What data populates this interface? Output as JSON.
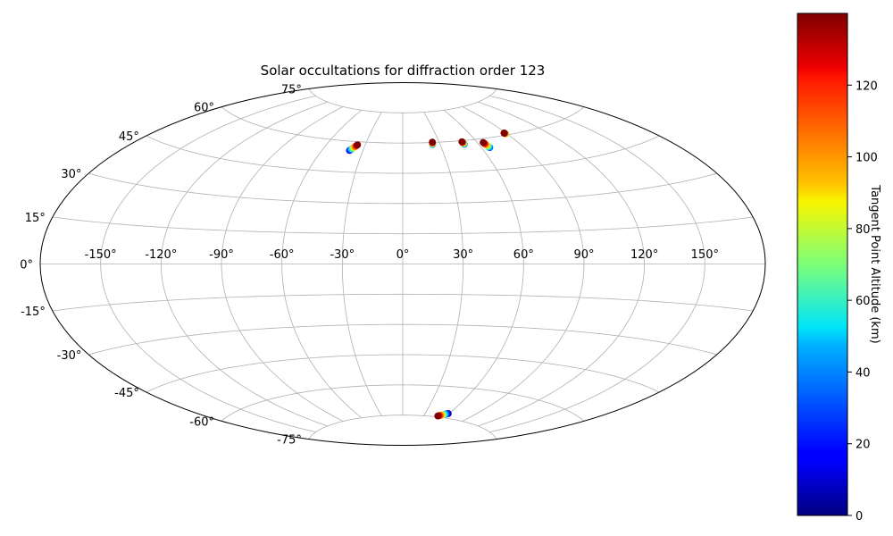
{
  "chart_data": {
    "type": "scatter",
    "projection": "aitoff-mollweide-style",
    "title": "Solar occultations for diffraction order 123",
    "x_ticks": [
      {
        "value": -150,
        "label": "-150°"
      },
      {
        "value": -120,
        "label": "-120°"
      },
      {
        "value": -90,
        "label": "-90°"
      },
      {
        "value": -60,
        "label": "-60°"
      },
      {
        "value": -30,
        "label": "-30°"
      },
      {
        "value": 0,
        "label": "0°"
      },
      {
        "value": 30,
        "label": "30°"
      },
      {
        "value": 60,
        "label": "60°"
      },
      {
        "value": 90,
        "label": "90°"
      },
      {
        "value": 120,
        "label": "120°"
      },
      {
        "value": 150,
        "label": "150°"
      }
    ],
    "y_ticks": [
      {
        "value": 75,
        "label": "75°"
      },
      {
        "value": 60,
        "label": "60°"
      },
      {
        "value": 45,
        "label": "45°"
      },
      {
        "value": 30,
        "label": "30°"
      },
      {
        "value": 15,
        "label": "15°"
      },
      {
        "value": 0,
        "label": "0°"
      },
      {
        "value": -15,
        "label": "-15°"
      },
      {
        "value": -30,
        "label": "-30°"
      },
      {
        "value": -45,
        "label": "-45°"
      },
      {
        "value": -60,
        "label": "-60°"
      },
      {
        "value": -75,
        "label": "-75°"
      }
    ],
    "grid": true,
    "colorbar": {
      "label": "Tangent Point Altitude (km)",
      "colormap": "jet",
      "range": [
        0,
        140
      ],
      "ticks": [
        {
          "value": 0,
          "label": "0"
        },
        {
          "value": 20,
          "label": "20"
        },
        {
          "value": 40,
          "label": "40"
        },
        {
          "value": 60,
          "label": "60"
        },
        {
          "value": 80,
          "label": "80"
        },
        {
          "value": 100,
          "label": "100"
        },
        {
          "value": 120,
          "label": "120"
        }
      ]
    },
    "occultations": [
      {
        "lon_start": -40,
        "lat_start": 55.5,
        "lon_end": -36,
        "lat_end": 58.5,
        "alt_start": 10,
        "alt_end": 140
      },
      {
        "lon_start": 24,
        "lat_start": 59.0,
        "lon_end": 24.5,
        "lat_end": 60.2,
        "alt_start": 30,
        "alt_end": 140
      },
      {
        "lon_start": 49,
        "lat_start": 58.2,
        "lon_end": 48.5,
        "lat_end": 59.5,
        "alt_start": 30,
        "alt_end": 140
      },
      {
        "lon_start": 66,
        "lat_start": 55.5,
        "lon_end": 64.5,
        "lat_end": 58.2,
        "alt_start": 30,
        "alt_end": 140
      },
      {
        "lon_start": 89,
        "lat_start": 60.5,
        "lon_end": 88.5,
        "lat_end": 61.0,
        "alt_start": 60,
        "alt_end": 140
      },
      {
        "lon_start": 59,
        "lat_start": -72.8,
        "lon_end": 49,
        "lat_end": -74.5,
        "alt_start": 0,
        "alt_end": 140
      }
    ]
  }
}
